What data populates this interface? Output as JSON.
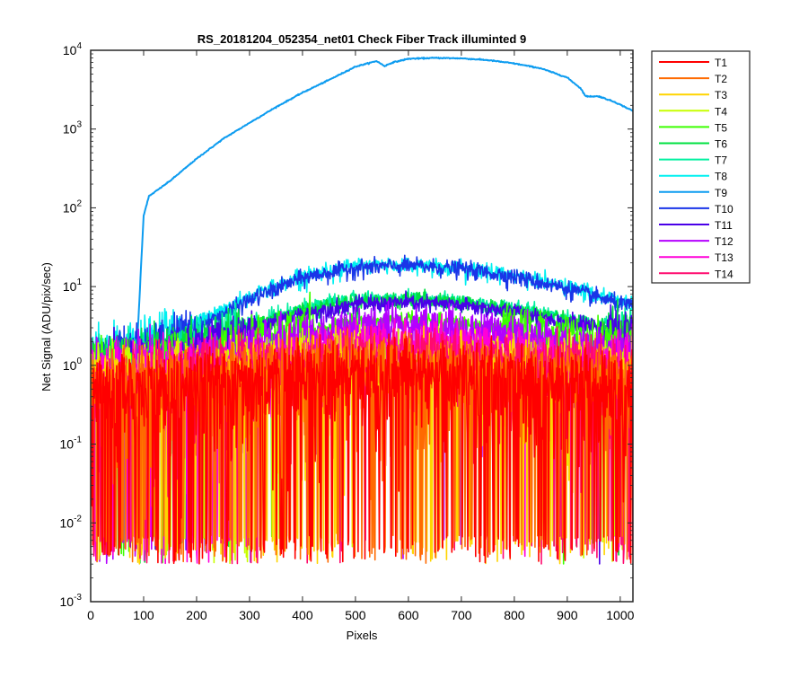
{
  "chart_data": {
    "type": "line",
    "title": "RS_20181204_052354_net01   Check Fiber     Track illuminted 9",
    "xlabel": "Pixels",
    "ylabel": "Net Signal (ADU/pix/sec)",
    "xlim": [
      0,
      1024
    ],
    "ylim": [
      0.001,
      10000
    ],
    "yscale": "log",
    "grid": false,
    "legend_position": "outside-right",
    "x_ticks": [
      0,
      100,
      200,
      300,
      400,
      500,
      600,
      700,
      800,
      900,
      1000
    ],
    "x_tick_labels": [
      "0",
      "100",
      "200",
      "300",
      "400",
      "500",
      "600",
      "700",
      "800",
      "900",
      "1000"
    ],
    "y_ticks": [
      0.001,
      0.01,
      0.1,
      1,
      10,
      100,
      1000,
      10000
    ],
    "y_tick_labels": [
      {
        "base": "10",
        "exp": "-3"
      },
      {
        "base": "10",
        "exp": "-2"
      },
      {
        "base": "10",
        "exp": "-1"
      },
      {
        "base": "10",
        "exp": "0"
      },
      {
        "base": "10",
        "exp": "1"
      },
      {
        "base": "10",
        "exp": "2"
      },
      {
        "base": "10",
        "exp": "3"
      },
      {
        "base": "10",
        "exp": "4"
      }
    ],
    "series": [
      {
        "name": "T1",
        "color": "#ff0000",
        "x": [
          0,
          100,
          200,
          300,
          400,
          500,
          600,
          700,
          800,
          900,
          1024
        ],
        "y": [
          0.45,
          0.5,
          0.55,
          0.6,
          0.7,
          0.75,
          0.75,
          0.7,
          0.65,
          0.55,
          0.45
        ]
      },
      {
        "name": "T2",
        "color": "#ff6a00",
        "x": [
          0,
          100,
          200,
          300,
          400,
          500,
          600,
          700,
          800,
          900,
          1024
        ],
        "y": [
          0.5,
          0.55,
          0.6,
          0.7,
          0.8,
          0.85,
          0.85,
          0.8,
          0.7,
          0.6,
          0.5
        ]
      },
      {
        "name": "T3",
        "color": "#ffd400",
        "x": [
          0,
          100,
          200,
          300,
          400,
          500,
          600,
          700,
          800,
          900,
          1024
        ],
        "y": [
          0.55,
          0.6,
          0.65,
          0.75,
          0.9,
          1.0,
          1.0,
          0.95,
          0.85,
          0.7,
          0.55
        ]
      },
      {
        "name": "T4",
        "color": "#c8ff00",
        "x": [
          0,
          100,
          200,
          300,
          400,
          500,
          600,
          700,
          800,
          900,
          1024
        ],
        "y": [
          0.6,
          0.7,
          0.8,
          1.0,
          1.3,
          1.5,
          1.5,
          1.4,
          1.2,
          1.0,
          0.75
        ]
      },
      {
        "name": "T5",
        "color": "#3cff00",
        "x": [
          0,
          100,
          200,
          300,
          400,
          500,
          600,
          700,
          800,
          900,
          1024
        ],
        "y": [
          0.9,
          1.0,
          1.3,
          1.9,
          2.8,
          3.6,
          3.8,
          3.4,
          2.9,
          2.3,
          1.7
        ]
      },
      {
        "name": "T6",
        "color": "#00e040",
        "x": [
          0,
          100,
          200,
          300,
          400,
          500,
          600,
          700,
          800,
          900,
          1024
        ],
        "y": [
          1.0,
          1.3,
          1.9,
          3.2,
          5.0,
          6.5,
          6.8,
          6.2,
          5.0,
          3.8,
          2.6
        ]
      },
      {
        "name": "T7",
        "color": "#00f0a0",
        "x": [
          0,
          100,
          200,
          300,
          400,
          500,
          600,
          700,
          800,
          900,
          1024
        ],
        "y": [
          1.1,
          1.4,
          2.0,
          3.4,
          5.4,
          7.0,
          7.2,
          6.6,
          5.3,
          4.0,
          2.8
        ]
      },
      {
        "name": "T8",
        "color": "#00f0f0",
        "x": [
          0,
          100,
          200,
          300,
          400,
          500,
          600,
          700,
          800,
          900,
          1024
        ],
        "y": [
          1.5,
          2.0,
          3.5,
          7.5,
          14,
          18.5,
          19,
          17.5,
          14,
          10,
          6
        ]
      },
      {
        "name": "T9",
        "color": "#0d9cf0",
        "x": [
          0,
          50,
          88,
          100,
          110,
          150,
          200,
          250,
          300,
          350,
          400,
          450,
          500,
          540,
          555,
          570,
          600,
          650,
          700,
          750,
          800,
          850,
          900,
          925,
          935,
          945,
          960,
          990,
          1024
        ],
        "y": [
          1.3,
          1.6,
          2.0,
          80,
          140,
          220,
          420,
          750,
          1200,
          1900,
          2900,
          4200,
          6200,
          7300,
          6300,
          7000,
          7800,
          8000,
          7900,
          7500,
          6800,
          5900,
          4500,
          3300,
          2600,
          2600,
          2600,
          2200,
          1700
        ]
      },
      {
        "name": "T10",
        "color": "#1a35e8",
        "x": [
          0,
          100,
          200,
          300,
          400,
          500,
          600,
          700,
          800,
          900,
          1024
        ],
        "y": [
          1.2,
          1.7,
          3.0,
          6.8,
          13,
          17.5,
          18.5,
          17,
          13.5,
          9.5,
          5.5
        ]
      },
      {
        "name": "T11",
        "color": "#4a00e8",
        "x": [
          0,
          100,
          200,
          300,
          400,
          500,
          600,
          700,
          800,
          900,
          1024
        ],
        "y": [
          1.0,
          1.3,
          1.8,
          2.8,
          4.5,
          6.0,
          6.3,
          5.8,
          4.8,
          3.6,
          2.4
        ]
      },
      {
        "name": "T12",
        "color": "#b400ff",
        "x": [
          0,
          100,
          200,
          300,
          400,
          500,
          600,
          700,
          800,
          900,
          1024
        ],
        "y": [
          0.8,
          0.95,
          1.2,
          1.7,
          2.4,
          2.9,
          3.0,
          2.8,
          2.3,
          1.8,
          1.3
        ]
      },
      {
        "name": "T13",
        "color": "#ff00d8",
        "x": [
          0,
          100,
          200,
          300,
          400,
          500,
          600,
          700,
          800,
          900,
          1024
        ],
        "y": [
          0.6,
          0.7,
          0.85,
          1.1,
          1.5,
          1.8,
          1.9,
          1.75,
          1.5,
          1.2,
          0.9
        ]
      },
      {
        "name": "T14",
        "color": "#ff0a6e",
        "x": [
          0,
          100,
          200,
          300,
          400,
          500,
          600,
          700,
          800,
          900,
          1024
        ],
        "y": [
          0.5,
          0.6,
          0.75,
          0.95,
          1.2,
          1.4,
          1.5,
          1.4,
          1.2,
          0.95,
          0.7
        ]
      }
    ]
  }
}
